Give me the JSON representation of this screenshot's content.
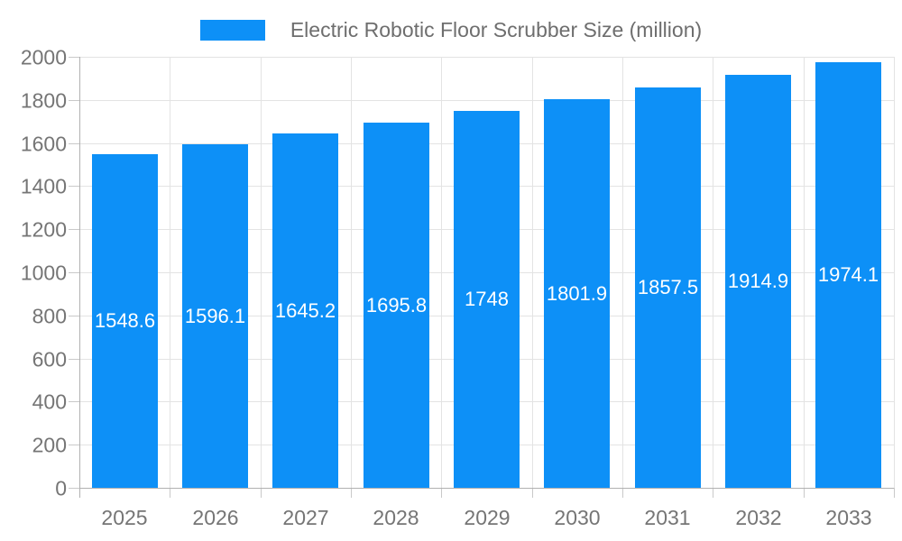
{
  "legend": {
    "label": "Electric Robotic Floor Scrubber Size (million)",
    "swatch_color": "#0d90f7"
  },
  "chart_data": {
    "type": "bar",
    "title": "Electric Robotic Floor Scrubber Size (million)",
    "categories": [
      "2025",
      "2026",
      "2027",
      "2028",
      "2029",
      "2030",
      "2031",
      "2032",
      "2033"
    ],
    "series": [
      {
        "name": "Electric Robotic Floor Scrubber Size (million)",
        "values": [
          1548.6,
          1596.1,
          1645.2,
          1695.8,
          1748,
          1801.9,
          1857.5,
          1914.9,
          1974.1
        ]
      }
    ],
    "xlabel": "",
    "ylabel": "",
    "ylim": [
      0,
      2000
    ],
    "ytick_step": 200,
    "grid": true,
    "legend_position": "top",
    "bar_labels_visible": true
  },
  "colors": {
    "bar": "#0d90f7",
    "bar_label": "#ffffff",
    "axis_text": "#757575",
    "legend_text": "#6e6e6e",
    "gridline": "#e3e3e3",
    "axis_line": "#b1b1b1",
    "tick": "#c9c9c9",
    "background": "#ffffff"
  }
}
